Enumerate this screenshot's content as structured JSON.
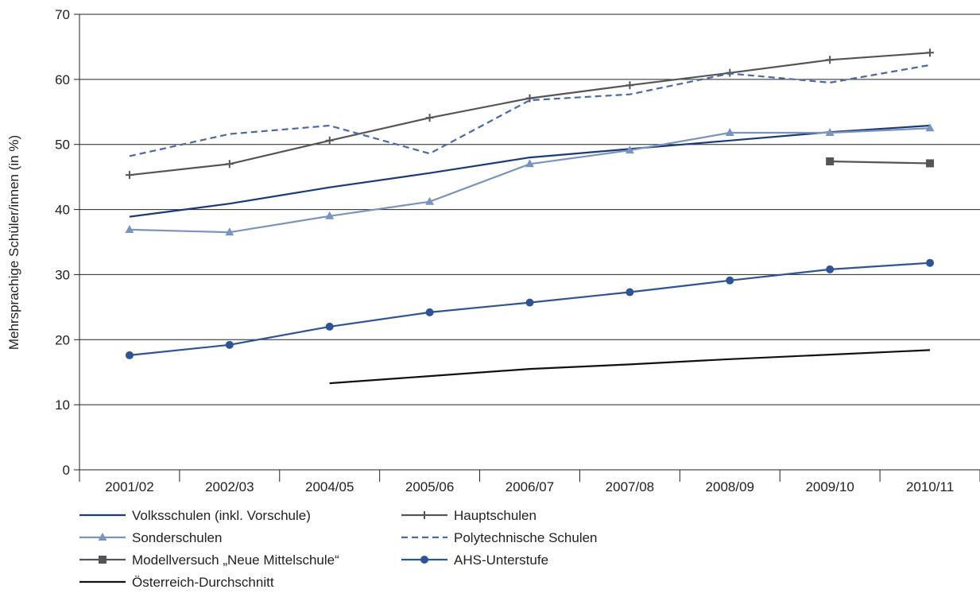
{
  "chart_data": {
    "type": "line",
    "ylabel": "Mehrsprachige Schüler/innen (in %)",
    "xlabel": "",
    "ylim": [
      0,
      70
    ],
    "yticks": [
      0,
      10,
      20,
      30,
      40,
      50,
      60,
      70
    ],
    "grid": "horizontal",
    "legend_position": "bottom",
    "categories": [
      "2001/02",
      "2002/03",
      "2004/05",
      "2005/06",
      "2006/07",
      "2007/08",
      "2008/09",
      "2009/10",
      "2010/11"
    ],
    "series": [
      {
        "name": "Volksschulen (inkl. Vorschule)",
        "color": "#1a3a7a",
        "marker": "none",
        "dash": "solid",
        "values": [
          38.9,
          40.9,
          43.4,
          45.6,
          48.0,
          49.3,
          50.6,
          51.9,
          52.9
        ]
      },
      {
        "name": "Hauptschulen",
        "color": "#555555",
        "marker": "plus",
        "dash": "solid",
        "values": [
          45.3,
          47.0,
          50.6,
          54.1,
          57.1,
          59.1,
          61.0,
          63.0,
          64.1
        ]
      },
      {
        "name": "Sonderschulen",
        "color": "#7a93bf",
        "marker": "triangle",
        "dash": "solid",
        "values": [
          36.9,
          36.5,
          39.0,
          41.2,
          47.0,
          49.1,
          51.8,
          51.8,
          52.5
        ]
      },
      {
        "name": "Polytechnische Schulen",
        "color": "#4a6aa5",
        "marker": "none",
        "dash": "dashed",
        "values": [
          48.2,
          51.6,
          52.9,
          48.6,
          56.8,
          57.7,
          60.9,
          59.5,
          62.2
        ]
      },
      {
        "name": "Modellversuch „Neue Mittelschule“",
        "color": "#555555",
        "marker": "square",
        "dash": "solid",
        "values": [
          null,
          null,
          null,
          null,
          null,
          null,
          null,
          47.4,
          47.1
        ]
      },
      {
        "name": "AHS-Unterstufe",
        "color": "#2f5496",
        "marker": "circle",
        "dash": "solid",
        "values": [
          17.6,
          19.2,
          22.0,
          24.2,
          25.7,
          27.3,
          29.1,
          30.8,
          31.8
        ]
      },
      {
        "name": "Österreich-Durchschnitt",
        "color": "#111111",
        "marker": "none",
        "dash": "solid",
        "values": [
          null,
          null,
          13.3,
          14.4,
          15.5,
          16.2,
          17.0,
          17.7,
          18.4
        ]
      }
    ]
  }
}
